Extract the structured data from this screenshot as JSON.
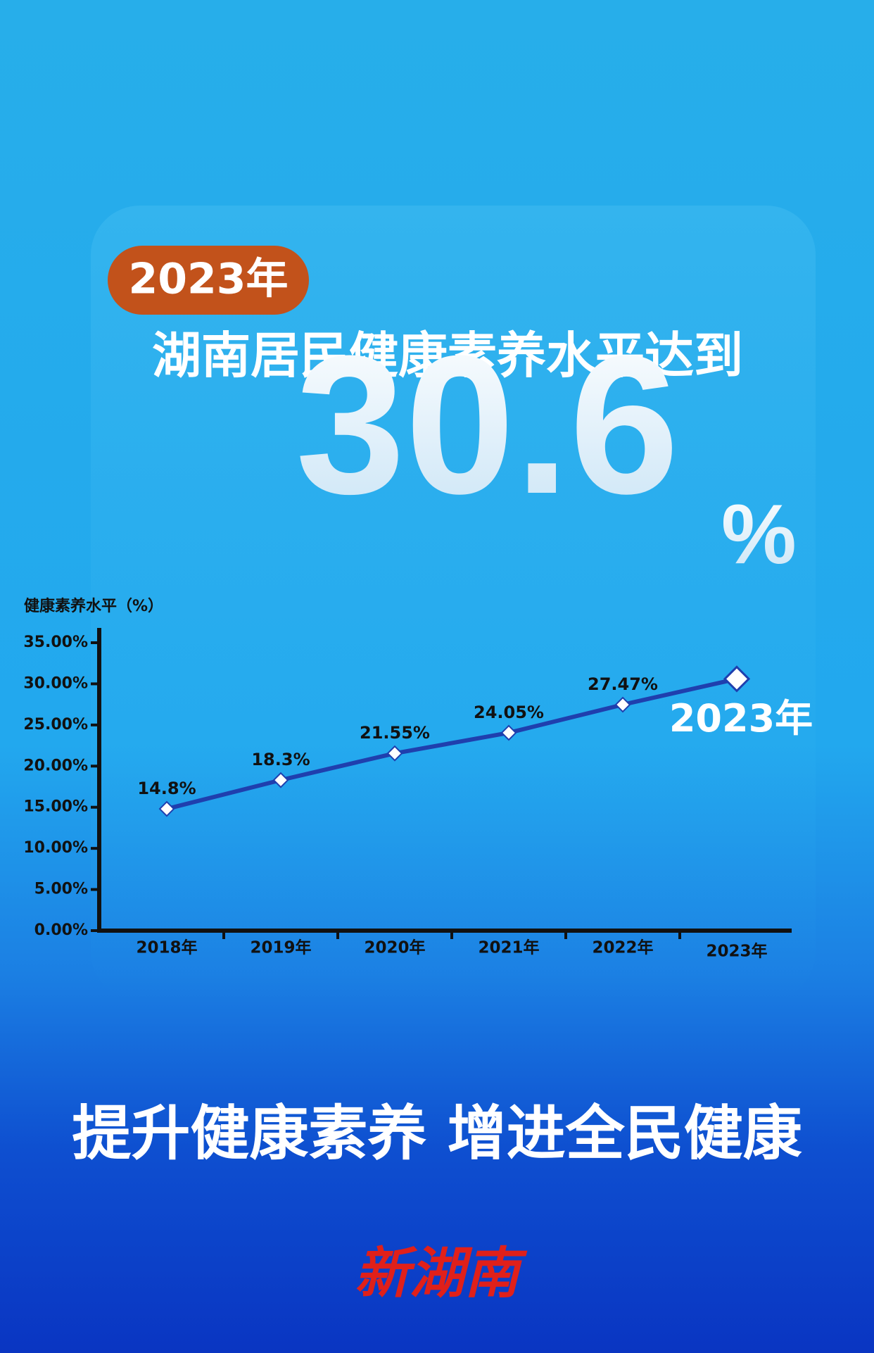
{
  "badge": "2023年",
  "headline": "湖南居民健康素养水平达到",
  "big_number": "30.6",
  "big_unit": "%",
  "slogan": "提升健康素养 增进全民健康",
  "logo": "新湖南",
  "chart_data": {
    "type": "line",
    "y_label": "健康素养水平（%）",
    "categories": [
      "2018年",
      "2019年",
      "2020年",
      "2021年",
      "2022年",
      "2023年"
    ],
    "values": [
      14.8,
      18.3,
      21.55,
      24.05,
      27.47,
      30.6
    ],
    "value_labels": [
      "14.8%",
      "18.3%",
      "21.55%",
      "24.05%",
      "27.47%",
      null
    ],
    "annotation": "2023年",
    "color": "#1f3fae",
    "ylim": [
      0,
      35
    ],
    "yticks": [
      {
        "value": 0,
        "label": "0.00%"
      },
      {
        "value": 5,
        "label": "5.00%"
      },
      {
        "value": 10,
        "label": "10.00%"
      },
      {
        "value": 15,
        "label": "15.00%"
      },
      {
        "value": 20,
        "label": "20.00%"
      },
      {
        "value": 25,
        "label": "25.00%"
      },
      {
        "value": 30,
        "label": "30.00%"
      },
      {
        "value": 35,
        "label": "35.00%"
      }
    ],
    "grid": false
  }
}
